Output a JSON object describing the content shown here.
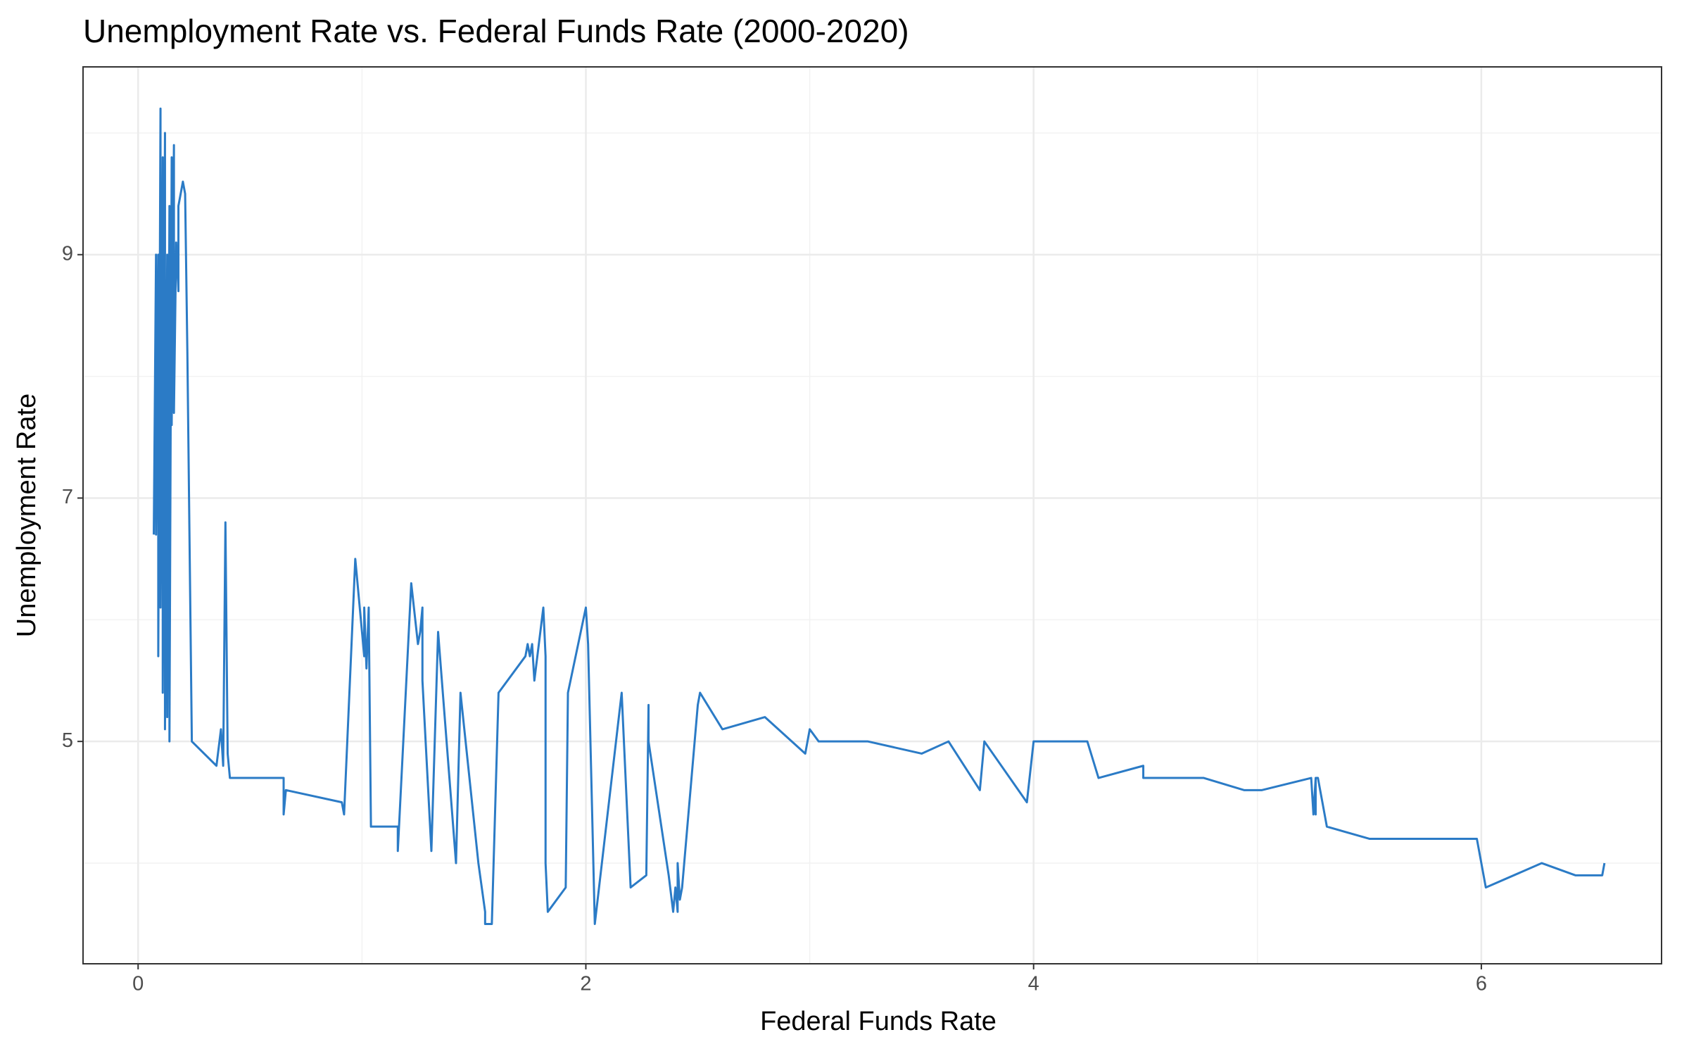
{
  "chart_data": {
    "type": "line",
    "title": "Unemployment Rate vs. Federal Funds Rate (2000-2020)",
    "x_label": "Federal Funds Rate",
    "y_label": "Unemployment Rate",
    "color": "#2b7bc6",
    "grid": true,
    "xlim": [
      -0.246,
      6.805
    ],
    "ylim": [
      3.173,
      10.543
    ],
    "xticks": [
      0,
      2,
      4,
      6
    ],
    "yticks": [
      5,
      7,
      9
    ],
    "minor_xticks": [
      1,
      3,
      5
    ],
    "minor_yticks": [
      4,
      6,
      8,
      10
    ],
    "x": [
      0.07,
      0.08,
      0.08,
      0.09,
      0.09,
      0.1,
      0.1,
      0.11,
      0.11,
      0.12,
      0.12,
      0.13,
      0.13,
      0.14,
      0.14,
      0.15,
      0.15,
      0.16,
      0.16,
      0.17,
      0.18,
      0.18,
      0.19,
      0.2,
      0.21,
      0.22,
      0.24,
      0.35,
      0.37,
      0.38,
      0.39,
      0.4,
      0.41,
      0.65,
      0.65,
      0.66,
      0.91,
      0.92,
      0.97,
      1.01,
      1.01,
      1.02,
      1.03,
      1.04,
      1.16,
      1.16,
      1.22,
      1.25,
      1.26,
      1.27,
      1.27,
      1.31,
      1.34,
      1.42,
      1.44,
      1.52,
      1.55,
      1.55,
      1.58,
      1.61,
      1.73,
      1.74,
      1.75,
      1.76,
      1.77,
      1.81,
      1.82,
      1.82,
      1.83,
      1.91,
      1.92,
      2.0,
      2.01,
      2.04,
      2.16,
      2.2,
      2.27,
      2.28,
      2.28,
      2.37,
      2.39,
      2.4,
      2.41,
      2.41,
      2.42,
      2.43,
      2.5,
      2.51,
      2.61,
      2.8,
      2.98,
      3.0,
      3.04,
      3.26,
      3.5,
      3.62,
      3.76,
      3.78,
      3.97,
      4.0,
      4.24,
      4.29,
      4.49,
      4.49,
      4.76,
      4.94,
      5.02,
      5.24,
      5.25,
      5.26,
      5.26,
      5.26,
      5.27,
      5.31,
      5.5,
      5.98,
      6.02,
      6.27,
      6.42,
      6.54,
      6.55
    ],
    "values": [
      6.7,
      9.0,
      6.7,
      9.0,
      5.7,
      10.2,
      6.1,
      9.8,
      5.4,
      10.0,
      5.1,
      9.0,
      5.2,
      9.4,
      5.0,
      9.8,
      7.6,
      9.9,
      7.7,
      9.1,
      8.7,
      9.4,
      9.5,
      9.6,
      9.5,
      8.2,
      5.0,
      4.8,
      5.1,
      4.8,
      6.8,
      4.9,
      4.7,
      4.7,
      4.4,
      4.6,
      4.5,
      4.4,
      6.5,
      5.7,
      6.1,
      5.6,
      6.1,
      4.3,
      4.3,
      4.1,
      6.3,
      5.8,
      5.9,
      6.1,
      5.5,
      4.1,
      5.9,
      4.0,
      5.4,
      4.0,
      3.6,
      3.5,
      3.5,
      5.4,
      5.7,
      5.8,
      5.7,
      5.8,
      5.5,
      6.1,
      5.7,
      4.0,
      3.6,
      3.8,
      5.4,
      6.1,
      5.8,
      3.5,
      5.4,
      3.8,
      3.9,
      5.3,
      5.0,
      3.9,
      3.6,
      3.8,
      3.6,
      4.0,
      3.7,
      3.8,
      5.3,
      5.4,
      5.1,
      5.2,
      4.9,
      5.1,
      5.0,
      5.0,
      4.9,
      5.0,
      4.6,
      5.0,
      4.5,
      5.0,
      5.0,
      4.7,
      4.8,
      4.7,
      4.7,
      4.6,
      4.6,
      4.7,
      4.4,
      4.7,
      4.4,
      4.7,
      4.7,
      4.3,
      4.2,
      4.2,
      3.8,
      4.0,
      3.9,
      3.9,
      4.0
    ]
  }
}
